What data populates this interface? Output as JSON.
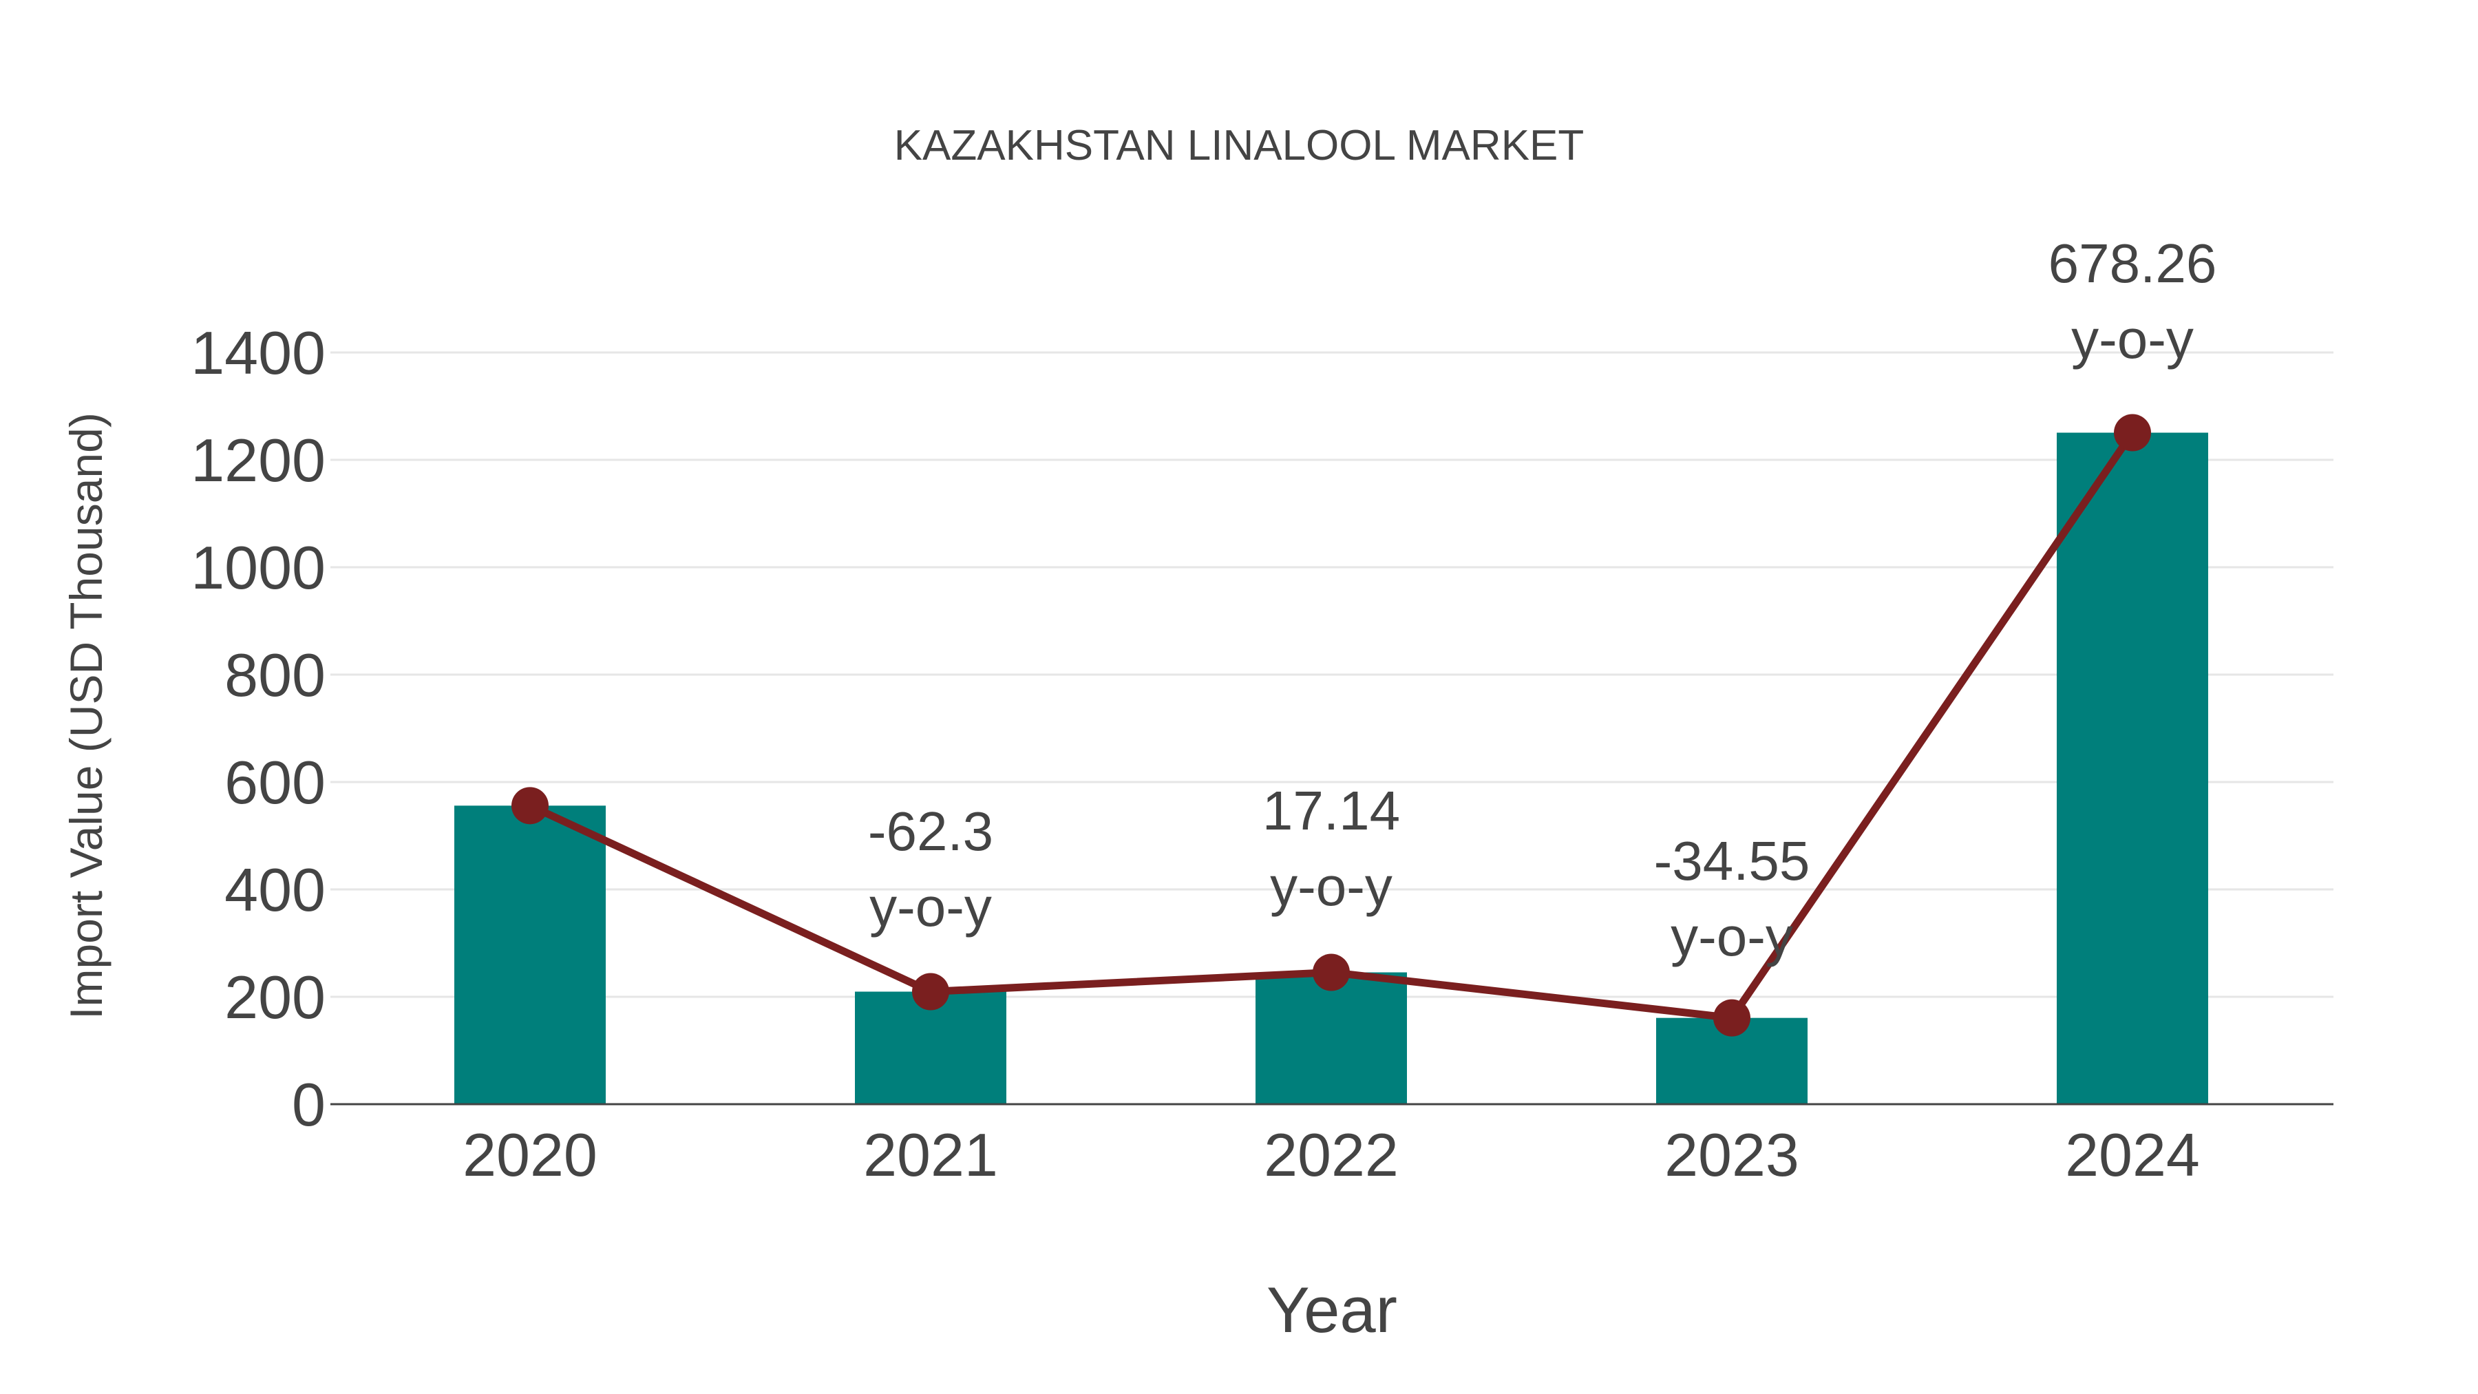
{
  "chart_data": {
    "type": "bar",
    "title": "KAZAKHSTAN LINALOOL MARKET",
    "xlabel": "Year",
    "ylabel": "Import Value (USD Thousand)",
    "categories": [
      "2020",
      "2021",
      "2022",
      "2023",
      "2024"
    ],
    "series": [
      {
        "name": "Import Value",
        "type": "bar",
        "color": "#007f7b",
        "values": [
          556,
          209.6,
          245.5,
          160.7,
          1250.6
        ]
      },
      {
        "name": "Import Value (line)",
        "type": "line",
        "color": "#7a1f1f",
        "values": [
          556,
          209.6,
          245.5,
          160.7,
          1250.6
        ]
      }
    ],
    "annotations": [
      {
        "category": "2021",
        "text": [
          "-62.3",
          "y-o-y"
        ]
      },
      {
        "category": "2022",
        "text": [
          "17.14",
          "y-o-y"
        ]
      },
      {
        "category": "2023",
        "text": [
          "-34.55",
          "y-o-y"
        ]
      },
      {
        "category": "2024",
        "text": [
          "678.26",
          "y-o-y"
        ]
      }
    ],
    "yticks": [
      0,
      200,
      400,
      600,
      800,
      1000,
      1200,
      1400
    ],
    "ylim": [
      0,
      1400
    ],
    "grid": true,
    "legend": false
  }
}
